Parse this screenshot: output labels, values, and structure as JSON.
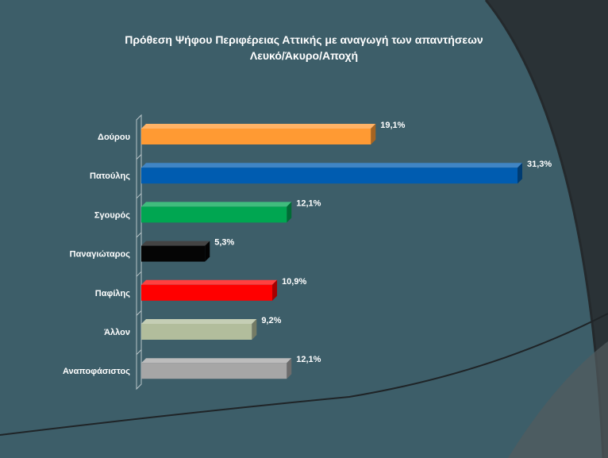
{
  "colors": {
    "background_dark": "#2a3236",
    "panel": "#3d5e69",
    "text": "#ffffff"
  },
  "chart_data": {
    "type": "bar",
    "orientation": "horizontal",
    "title_line1": "Πρόθεση Ψήφου Περιφέρειας Αττικής με αναγωγή των απαντήσεων",
    "title_line2": "Λευκό/Άκυρο/Αποχή",
    "categories": [
      "Δούρου",
      "Πατούλης",
      "Σγουρός",
      "Παναγιώταρος",
      "Παφίλης",
      "Άλλον",
      "Αναποφάσιστος"
    ],
    "values": [
      19.1,
      31.3,
      12.1,
      5.3,
      10.9,
      9.2,
      12.1
    ],
    "value_labels": [
      "19,1%",
      "31,3%",
      "12,1%",
      "5,3%",
      "10,9%",
      "9,2%",
      "12,1%"
    ],
    "bar_colors": [
      "#ff9a33",
      "#005cb0",
      "#00a651",
      "#050505",
      "#ff0000",
      "#b2bd9c",
      "#a6a6a6"
    ],
    "xlim": [
      0,
      31.3
    ],
    "grid": false,
    "legend": "none"
  }
}
